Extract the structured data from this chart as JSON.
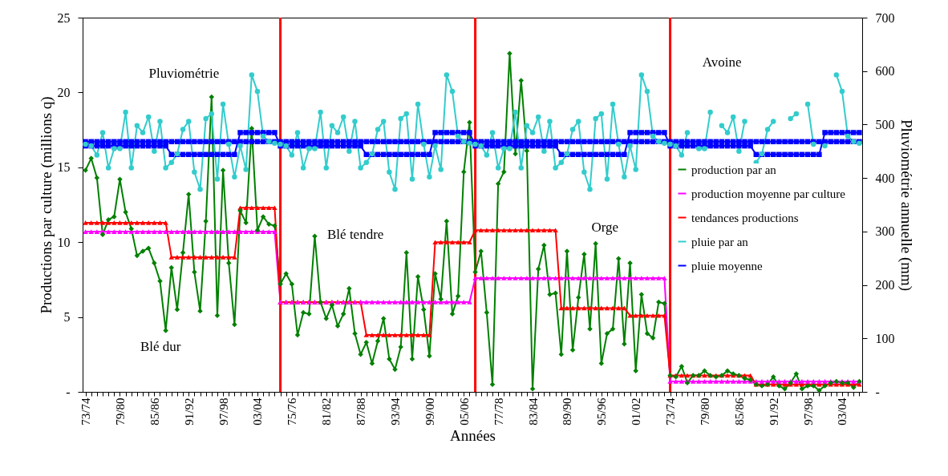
{
  "chart_data": {
    "type": "line",
    "xlabel": "Années",
    "ylabel": "Productions par culture (millions q)",
    "y2label": "Pluviométrie annuelle (mm)",
    "categories": [
      "73/74",
      null,
      null,
      null,
      null,
      null,
      "79/80",
      null,
      null,
      null,
      null,
      null,
      "85/86",
      null,
      null,
      null,
      null,
      null,
      "91/92",
      null,
      null,
      null,
      null,
      null,
      "97/98",
      null,
      null,
      null,
      null,
      null,
      "03/04",
      null,
      null,
      null,
      null,
      null,
      "75/76",
      null,
      null,
      null,
      null,
      null,
      "81/82",
      null,
      null,
      null,
      null,
      null,
      "87/88",
      null,
      null,
      null,
      null,
      null,
      "93/94",
      null,
      null,
      null,
      null,
      null,
      "99/00",
      null,
      null,
      null,
      null,
      null,
      "05/06",
      null,
      null,
      null,
      null,
      null,
      "77/78",
      null,
      null,
      null,
      null,
      null,
      "83/84",
      null,
      null,
      null,
      null,
      null,
      "89/90",
      null,
      null,
      null,
      null,
      null,
      "95/96",
      null,
      null,
      null,
      null,
      null,
      "01/02",
      null,
      null,
      null,
      null,
      null,
      "73/74",
      null,
      null,
      null,
      null,
      null,
      "79/80",
      null,
      null,
      null,
      null,
      null,
      "85/86",
      null,
      null,
      null,
      null,
      null,
      "91/92",
      null,
      null,
      null,
      null,
      null,
      "97/98",
      null,
      null,
      null,
      null,
      null,
      "03/04",
      null,
      null,
      null
    ],
    "ylim": [
      0,
      25
    ],
    "yticks": [
      {
        "value": 0,
        "label": "-"
      },
      5,
      10,
      15,
      20,
      25
    ],
    "y2lim": [
      0,
      700
    ],
    "y2ticks": [
      {
        "value": 0,
        "label": "-"
      },
      100,
      200,
      300,
      400,
      500,
      600,
      700
    ],
    "grid": false,
    "legend": "right",
    "annotations": [
      "Pluviométrie",
      "Blé dur",
      "Blé tendre",
      "Orge",
      "Avoine"
    ],
    "series": [
      {
        "name": "production par an",
        "color": "#008000",
        "marker": "diamond",
        "values": [
          14.8,
          15.6,
          14.3,
          10.5,
          11.5,
          11.7,
          14.2,
          12.0,
          10.9,
          9.1,
          9.4,
          9.6,
          8.6,
          7.4,
          4.1,
          8.3,
          5.5,
          9.3,
          13.2,
          8.0,
          5.4,
          11.4,
          19.7,
          5.1,
          14.8,
          8.6,
          4.5,
          12.1,
          11.3,
          17.6,
          10.8,
          11.7,
          11.2,
          11.1,
          7.2,
          7.9,
          7.2,
          3.8,
          5.3,
          5.2,
          10.4,
          6.0,
          4.9,
          5.8,
          4.4,
          5.2,
          6.9,
          3.9,
          2.5,
          3.3,
          1.9,
          3.4,
          4.9,
          2.2,
          1.5,
          3.0,
          9.3,
          2.2,
          7.7,
          5.5,
          2.4,
          7.9,
          6.2,
          11.4,
          5.2,
          6.4,
          14.7,
          18.0,
          8.0,
          9.4,
          5.3,
          0.5,
          13.9,
          14.7,
          22.6,
          15.9,
          20.8,
          16.1,
          0.2,
          8.2,
          9.8,
          6.5,
          6.6,
          2.5,
          9.4,
          2.8,
          6.3,
          9.2,
          4.2,
          9.9,
          1.9,
          3.9,
          4.2,
          8.9,
          3.2,
          8.6,
          1.4,
          6.5,
          3.9,
          3.6,
          6.0,
          5.9,
          1.1,
          1.0,
          1.7,
          0.6,
          1.1,
          1.1,
          1.4,
          1.1,
          1.0,
          1.1,
          1.4,
          1.2,
          1.1,
          0.9,
          0.8,
          0.5,
          0.4,
          0.5,
          1.0,
          0.4,
          0.2,
          0.6,
          1.2,
          0.2,
          0.4,
          0.4,
          0.1,
          0.4,
          0.6,
          0.7,
          0.6,
          0.6,
          0.3,
          0.7
        ]
      },
      {
        "name": "production moyenne par culture",
        "color": "#ff00ff",
        "marker": "triangle",
        "values": [
          10.7,
          10.7,
          10.7,
          10.7,
          10.7,
          10.7,
          10.7,
          10.7,
          10.7,
          10.7,
          10.7,
          10.7,
          10.7,
          10.7,
          10.7,
          10.7,
          10.7,
          10.7,
          10.7,
          10.7,
          10.7,
          10.7,
          10.7,
          10.7,
          10.7,
          10.7,
          10.7,
          10.7,
          10.7,
          10.7,
          10.7,
          10.7,
          10.7,
          10.7,
          6.0,
          6.0,
          6.0,
          6.0,
          6.0,
          6.0,
          6.0,
          6.0,
          6.0,
          6.0,
          6.0,
          6.0,
          6.0,
          6.0,
          6.0,
          6.0,
          6.0,
          6.0,
          6.0,
          6.0,
          6.0,
          6.0,
          6.0,
          6.0,
          6.0,
          6.0,
          6.0,
          6.0,
          6.0,
          6.0,
          6.0,
          6.0,
          6.0,
          6.0,
          7.6,
          7.6,
          7.6,
          7.6,
          7.6,
          7.6,
          7.6,
          7.6,
          7.6,
          7.6,
          7.6,
          7.6,
          7.6,
          7.6,
          7.6,
          7.6,
          7.6,
          7.6,
          7.6,
          7.6,
          7.6,
          7.6,
          7.6,
          7.6,
          7.6,
          7.6,
          7.6,
          7.6,
          7.6,
          7.6,
          7.6,
          7.6,
          7.6,
          7.6,
          0.7,
          0.7,
          0.7,
          0.7,
          0.7,
          0.7,
          0.7,
          0.7,
          0.7,
          0.7,
          0.7,
          0.7,
          0.7,
          0.7,
          0.7,
          0.7,
          0.7,
          0.7,
          0.7,
          0.7,
          0.7,
          0.7,
          0.7,
          0.7,
          0.7,
          0.7,
          0.7,
          0.7,
          0.7,
          0.7,
          0.7,
          0.7,
          0.7,
          0.7
        ]
      },
      {
        "name": "tendances productions",
        "color": "#ff0000",
        "marker": "triangle",
        "values": [
          11.3,
          11.3,
          11.3,
          11.3,
          11.3,
          11.3,
          11.3,
          11.3,
          11.3,
          11.3,
          11.3,
          11.3,
          11.3,
          11.3,
          11.3,
          9.0,
          9.0,
          9.0,
          9.0,
          9.0,
          9.0,
          9.0,
          9.0,
          9.0,
          9.0,
          9.0,
          9.0,
          12.3,
          12.3,
          12.3,
          12.3,
          12.3,
          12.3,
          12.3,
          6.0,
          6.0,
          6.0,
          6.0,
          6.0,
          6.0,
          6.0,
          6.0,
          6.0,
          6.0,
          6.0,
          6.0,
          6.0,
          6.0,
          6.0,
          3.8,
          3.8,
          3.8,
          3.8,
          3.8,
          3.8,
          3.8,
          3.8,
          3.8,
          3.8,
          3.8,
          3.8,
          10.0,
          10.0,
          10.0,
          10.0,
          10.0,
          10.0,
          10.0,
          10.8,
          10.8,
          10.8,
          10.8,
          10.8,
          10.8,
          10.8,
          10.8,
          10.8,
          10.8,
          10.8,
          10.8,
          10.8,
          10.8,
          10.8,
          5.6,
          5.6,
          5.6,
          5.6,
          5.6,
          5.6,
          5.6,
          5.6,
          5.6,
          5.6,
          5.6,
          5.6,
          5.1,
          5.1,
          5.1,
          5.1,
          5.1,
          5.1,
          5.1,
          1.1,
          1.1,
          1.1,
          1.1,
          1.1,
          1.1,
          1.1,
          1.1,
          1.1,
          1.1,
          1.1,
          1.1,
          1.1,
          1.1,
          1.1,
          0.5,
          0.5,
          0.5,
          0.5,
          0.5,
          0.5,
          0.5,
          0.5,
          0.5,
          0.5,
          0.5,
          0.5,
          0.5,
          0.5,
          0.5,
          0.5,
          0.5,
          0.5,
          0.5
        ]
      },
      {
        "name": "pluie par an",
        "color": "#33cccc",
        "marker": "circle",
        "axis": "y2",
        "values": [
          463,
          460,
          443,
          485,
          419,
          455,
          455,
          523,
          419,
          498,
          485,
          514,
          450,
          506,
          419,
          429,
          445,
          491,
          506,
          411,
          379,
          511,
          520,
          398,
          538,
          463,
          402,
          460,
          416,
          593,
          562,
          478,
          468,
          465,
          463,
          460,
          443,
          485,
          419,
          455,
          455,
          523,
          419,
          498,
          485,
          514,
          450,
          506,
          419,
          429,
          445,
          491,
          506,
          411,
          379,
          511,
          520,
          398,
          538,
          463,
          402,
          460,
          416,
          593,
          562,
          478,
          468,
          465,
          463,
          460,
          443,
          485,
          419,
          455,
          455,
          523,
          419,
          498,
          485,
          514,
          450,
          506,
          419,
          429,
          445,
          491,
          506,
          411,
          379,
          511,
          520,
          398,
          538,
          463,
          402,
          460,
          416,
          593,
          562,
          478,
          468,
          465,
          463,
          460,
          443,
          485,
          null,
          455,
          455,
          523,
          null,
          498,
          485,
          514,
          450,
          506,
          null,
          429,
          445,
          491,
          506,
          null,
          null,
          511,
          520,
          null,
          538,
          463,
          null,
          460,
          null,
          593,
          562,
          478,
          468,
          465
        ]
      },
      {
        "name": "pluie moyenne",
        "color": "#0000ff",
        "marker": "square",
        "axis": "y2",
        "values": [
          460,
          460,
          460,
          460,
          460,
          460,
          460,
          460,
          460,
          460,
          460,
          460,
          460,
          460,
          460,
          444,
          444,
          444,
          444,
          444,
          444,
          444,
          444,
          444,
          444,
          444,
          444,
          485,
          485,
          485,
          485,
          485,
          485,
          485,
          460,
          460,
          460,
          460,
          460,
          460,
          460,
          460,
          460,
          460,
          460,
          460,
          460,
          460,
          460,
          444,
          444,
          444,
          444,
          444,
          444,
          444,
          444,
          444,
          444,
          444,
          444,
          485,
          485,
          485,
          485,
          485,
          485,
          485,
          460,
          460,
          460,
          460,
          460,
          460,
          460,
          460,
          460,
          460,
          460,
          460,
          460,
          460,
          460,
          444,
          444,
          444,
          444,
          444,
          444,
          444,
          444,
          444,
          444,
          444,
          444,
          485,
          485,
          485,
          485,
          485,
          485,
          485,
          460,
          460,
          460,
          460,
          460,
          460,
          460,
          460,
          460,
          460,
          460,
          460,
          460,
          460,
          460,
          444,
          444,
          444,
          444,
          444,
          444,
          444,
          444,
          444,
          444,
          444,
          444,
          485,
          485,
          485,
          485,
          485,
          485,
          485
        ]
      },
      {
        "color": "#0000ff",
        "marker": "square",
        "axis": "y2",
        "values": [
          468,
          468,
          468,
          468,
          468,
          468,
          468,
          468,
          468,
          468,
          468,
          468,
          468,
          468,
          468,
          468,
          468,
          468,
          468,
          468,
          468,
          468,
          468,
          468,
          468,
          468,
          468,
          468,
          468,
          468,
          468,
          468,
          468,
          468,
          468,
          468,
          468,
          468,
          468,
          468,
          468,
          468,
          468,
          468,
          468,
          468,
          468,
          468,
          468,
          468,
          468,
          468,
          468,
          468,
          468,
          468,
          468,
          468,
          468,
          468,
          468,
          468,
          468,
          468,
          468,
          468,
          468,
          468,
          468,
          468,
          468,
          468,
          468,
          468,
          468,
          468,
          468,
          468,
          468,
          468,
          468,
          468,
          468,
          468,
          468,
          468,
          468,
          468,
          468,
          468,
          468,
          468,
          468,
          468,
          468,
          468,
          468,
          468,
          468,
          468,
          468,
          468,
          468,
          468,
          468,
          468,
          468,
          468,
          468,
          468,
          468,
          468,
          468,
          468,
          468,
          468,
          468,
          468,
          468,
          468,
          468,
          468,
          468,
          468,
          468,
          468,
          468,
          468,
          468,
          468,
          468,
          468,
          468,
          468,
          468,
          468
        ]
      }
    ]
  }
}
